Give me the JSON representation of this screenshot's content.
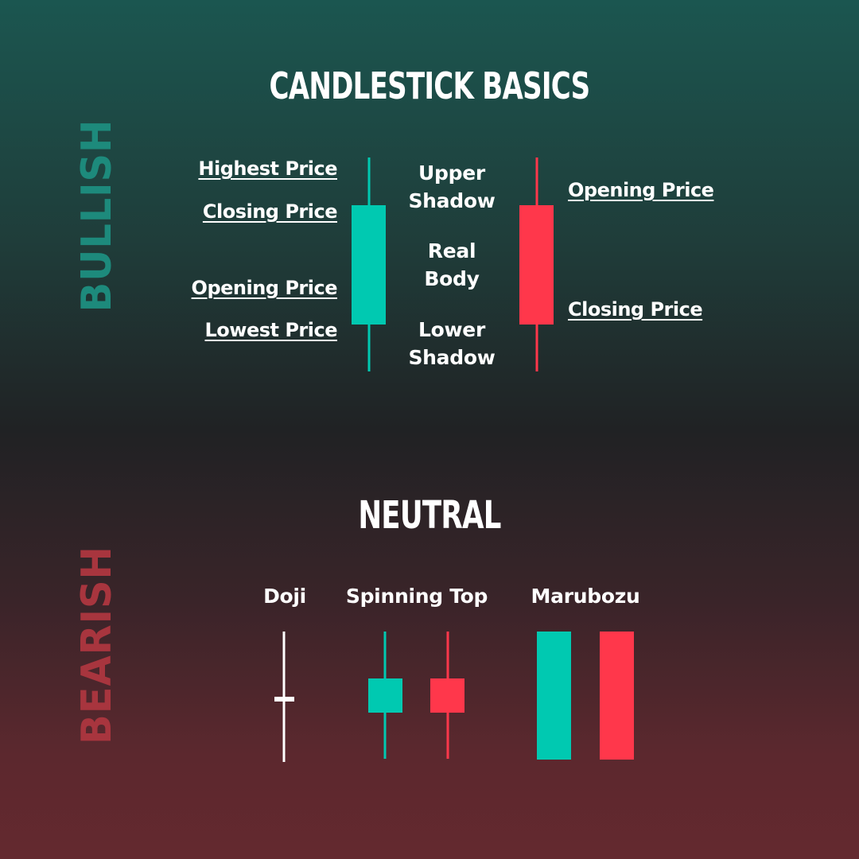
{
  "title": "CANDLESTICK BASICS",
  "side_labels": {
    "bullish": "BULLISH",
    "bearish": "BEARISH"
  },
  "bullish_candle_labels": {
    "highest": "Highest Price",
    "closing": "Closing Price",
    "opening": "Opening Price",
    "lowest": "Lowest Price"
  },
  "anatomy_labels": {
    "upper_shadow": [
      "Upper",
      "Shadow"
    ],
    "real_body": [
      "Real",
      "Body"
    ],
    "lower_shadow": [
      "Lower",
      "Shadow"
    ]
  },
  "bearish_candle_labels": {
    "opening": "Opening Price",
    "closing": "Closing Price"
  },
  "neutral": {
    "title": "NEUTRAL",
    "patterns": [
      "Doji",
      "Spinning Top",
      "Marubozu"
    ]
  },
  "colors": {
    "bullish": "#00c9b1",
    "bearish": "#ff374b",
    "doji": "#ffffff"
  }
}
